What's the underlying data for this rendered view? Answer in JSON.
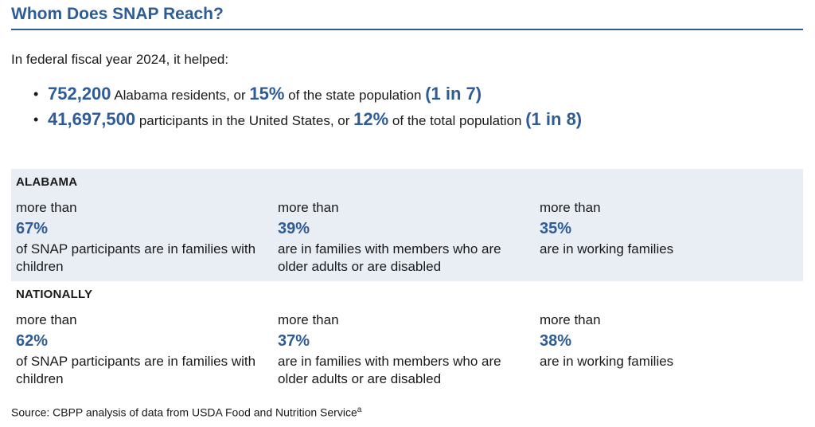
{
  "title": "Whom Does SNAP Reach?",
  "intro": "In federal fiscal year 2024, it helped:",
  "bullets": [
    {
      "num1": "752,200",
      "text1": " Alabama residents, or ",
      "num2": "15%",
      "text2": " of the state population ",
      "num3": "(1 in 7)"
    },
    {
      "num1": "41,697,500",
      "text1": " participants in the United States, or ",
      "num2": "12%",
      "text2": " of the total population ",
      "num3": "(1 in 8)"
    }
  ],
  "sections": [
    {
      "heading": "ALABAMA",
      "stats": [
        {
          "prefix": "more than",
          "value": "67%",
          "desc": "of SNAP participants are in families with children"
        },
        {
          "prefix": "more than",
          "value": "39%",
          "desc": "are in families with members who are older adults or are disabled"
        },
        {
          "prefix": "more than",
          "value": "35%",
          "desc": "are in working families"
        }
      ]
    },
    {
      "heading": "NATIONALLY",
      "stats": [
        {
          "prefix": "more than",
          "value": "62%",
          "desc": "of SNAP participants are in families with children"
        },
        {
          "prefix": "more than",
          "value": "37%",
          "desc": "are in families with members who are older adults or are disabled"
        },
        {
          "prefix": "more than",
          "value": "38%",
          "desc": "are in working families"
        }
      ]
    }
  ],
  "source": {
    "text": "Source: CBPP analysis of data from USDA Food and Nutrition Service",
    "sup": "a"
  },
  "colors": {
    "accent": "#2e5c97",
    "shade": "#e9eef5"
  }
}
